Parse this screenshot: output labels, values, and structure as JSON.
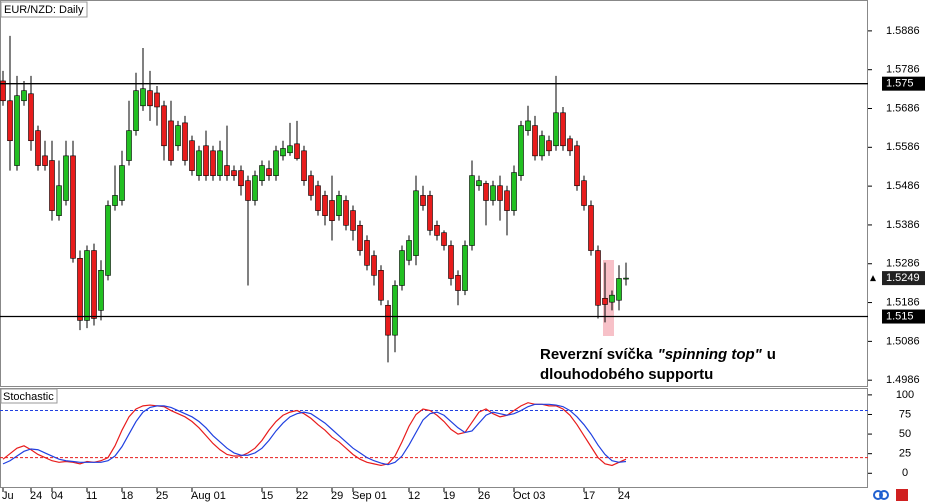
{
  "chart_data": [
    {
      "type": "candlestick",
      "title": "EUR/NZD: Daily",
      "open": [
        1.5757,
        1.5706,
        1.5539,
        1.5706,
        1.5724,
        1.5629,
        1.5564,
        1.5552,
        1.541,
        1.5449,
        1.5564,
        1.53,
        1.514,
        1.532,
        1.5166,
        1.5256,
        1.5436,
        1.5449,
        1.5552,
        1.5629,
        1.5693,
        1.5732,
        1.5726,
        1.5693,
        1.5654,
        1.559,
        1.5649,
        1.5603,
        1.5513,
        1.559,
        1.5577,
        1.5513,
        1.5539,
        1.5526,
        1.5526,
        1.55,
        1.5449,
        1.55,
        1.5531,
        1.5513,
        1.5564,
        1.5572,
        1.5595,
        1.5577,
        1.5513,
        1.5487,
        1.5462,
        1.5449,
        1.541,
        1.5449,
        1.5423,
        1.5385,
        1.5346,
        1.5307,
        1.5269,
        1.5179,
        1.5102,
        1.523,
        1.5295,
        1.5307,
        1.5462,
        1.5462,
        1.5385,
        1.5366,
        1.5333,
        1.5256,
        1.5217,
        1.5333,
        1.5487,
        1.5493,
        1.5449,
        1.5487,
        1.5474,
        1.5423,
        1.5513,
        1.5629,
        1.5642,
        1.5564,
        1.5603,
        1.559,
        1.5675,
        1.5608,
        1.559,
        1.55,
        1.5436,
        1.532,
        1.5197,
        1.5187,
        1.5192,
        1.5248
      ],
      "high": [
        1.5783,
        1.5873,
        1.577,
        1.5757,
        1.577,
        1.5642,
        1.5603,
        1.5603,
        1.5552,
        1.5603,
        1.5603,
        1.532,
        1.5333,
        1.5338,
        1.5295,
        1.5449,
        1.5539,
        1.5577,
        1.5706,
        1.5778,
        1.5842,
        1.5783,
        1.5744,
        1.5706,
        1.5706,
        1.5654,
        1.5667,
        1.5616,
        1.559,
        1.5629,
        1.559,
        1.5603,
        1.5642,
        1.5539,
        1.5539,
        1.5513,
        1.5526,
        1.5552,
        1.5552,
        1.559,
        1.5603,
        1.5649,
        1.5654,
        1.559,
        1.5526,
        1.55,
        1.5474,
        1.5513,
        1.5474,
        1.5462,
        1.5436,
        1.5397,
        1.5359,
        1.532,
        1.5282,
        1.5192,
        1.5243,
        1.5333,
        1.5359,
        1.5513,
        1.5487,
        1.5474,
        1.5397,
        1.5372,
        1.5346,
        1.5269,
        1.5346,
        1.5552,
        1.5513,
        1.55,
        1.55,
        1.5513,
        1.5487,
        1.5539,
        1.5654,
        1.5693,
        1.5667,
        1.5629,
        1.5616,
        1.577,
        1.569,
        1.5616,
        1.5603,
        1.5513,
        1.5449,
        1.5333,
        1.5289,
        1.5217,
        1.5282,
        1.5289
      ],
      "low": [
        1.5693,
        1.5526,
        1.5526,
        1.5693,
        1.5577,
        1.5526,
        1.5526,
        1.5397,
        1.5397,
        1.5436,
        1.5289,
        1.5115,
        1.512,
        1.5127,
        1.514,
        1.5243,
        1.5423,
        1.5436,
        1.5539,
        1.5616,
        1.568,
        1.5654,
        1.5642,
        1.5552,
        1.5539,
        1.5577,
        1.5539,
        1.5513,
        1.55,
        1.55,
        1.55,
        1.55,
        1.55,
        1.55,
        1.5462,
        1.523,
        1.5436,
        1.5487,
        1.55,
        1.55,
        1.5552,
        1.5564,
        1.5552,
        1.5487,
        1.5449,
        1.541,
        1.5385,
        1.5346,
        1.5397,
        1.5372,
        1.5346,
        1.5307,
        1.5269,
        1.523,
        1.5179,
        1.5032,
        1.5058,
        1.5217,
        1.5282,
        1.5282,
        1.5423,
        1.5359,
        1.5346,
        1.532,
        1.523,
        1.5179,
        1.5205,
        1.532,
        1.5474,
        1.5385,
        1.5436,
        1.5397,
        1.5359,
        1.541,
        1.55,
        1.5616,
        1.5552,
        1.5552,
        1.5564,
        1.5577,
        1.5577,
        1.5564,
        1.5474,
        1.5423,
        1.5307,
        1.5145,
        1.5135,
        1.5166,
        1.5166,
        1.523
      ],
      "close": [
        1.5706,
        1.5603,
        1.5719,
        1.5732,
        1.5603,
        1.5539,
        1.5539,
        1.5423,
        1.5487,
        1.5564,
        1.53,
        1.514,
        1.532,
        1.5145,
        1.5269,
        1.5436,
        1.5462,
        1.5539,
        1.5629,
        1.5732,
        1.5737,
        1.5693,
        1.569,
        1.559,
        1.5552,
        1.5642,
        1.5552,
        1.5526,
        1.5577,
        1.5513,
        1.5513,
        1.5577,
        1.5513,
        1.5513,
        1.5487,
        1.5449,
        1.5513,
        1.5539,
        1.5513,
        1.5577,
        1.5583,
        1.559,
        1.5557,
        1.55,
        1.5462,
        1.5423,
        1.541,
        1.5397,
        1.5462,
        1.5385,
        1.5372,
        1.532,
        1.5282,
        1.5256,
        1.5192,
        1.5102,
        1.523,
        1.532,
        1.5346,
        1.5474,
        1.5436,
        1.5372,
        1.5359,
        1.5333,
        1.5248,
        1.5217,
        1.5333,
        1.5513,
        1.55,
        1.5449,
        1.5487,
        1.5449,
        1.5423,
        1.5521,
        1.5642,
        1.5654,
        1.5564,
        1.5616,
        1.5577,
        1.5675,
        1.559,
        1.5577,
        1.5487,
        1.5436,
        1.532,
        1.5179,
        1.5181,
        1.5205,
        1.5248,
        1.5249
      ],
      "up_color": "#22c022",
      "down_color": "#e81c1c",
      "ylim": [
        1.4971,
        1.5963
      ],
      "yticks": [
        1.5886,
        1.5786,
        1.5686,
        1.5586,
        1.5486,
        1.5386,
        1.5286,
        1.5186,
        1.5086,
        1.4986
      ],
      "levels": [
        1.575,
        1.515
      ],
      "annotation": [
        "Reverzní svíčka",
        "\"spinning top\"",
        "u",
        "dlouhodobého supportu"
      ]
    },
    {
      "type": "line",
      "title": "Stochastic",
      "categories": [
        "Ju",
        null,
        null,
        null,
        "24",
        null,
        null,
        "04",
        null,
        null,
        null,
        null,
        "11",
        null,
        null,
        null,
        null,
        "18",
        null,
        null,
        null,
        null,
        "25",
        null,
        null,
        null,
        null,
        "Aug 01",
        null,
        null,
        null,
        null,
        null,
        null,
        null,
        null,
        null,
        "15",
        null,
        null,
        null,
        null,
        "22",
        null,
        null,
        null,
        null,
        "29",
        null,
        null,
        "Sep 01",
        null,
        null,
        null,
        null,
        null,
        null,
        null,
        "12",
        null,
        null,
        null,
        null,
        "19",
        null,
        null,
        null,
        null,
        "26",
        null,
        null,
        null,
        null,
        "Oct 03",
        null,
        null,
        null,
        null,
        null,
        null,
        null,
        null,
        null,
        "17",
        null,
        null,
        null,
        null,
        "24",
        null
      ],
      "series": [
        {
          "color": "#e81c1c",
          "values": [
            18,
            25,
            32,
            35,
            30,
            24,
            20,
            16,
            14,
            15,
            14,
            12,
            15,
            14,
            16,
            20,
            35,
            55,
            72,
            82,
            86,
            87,
            86,
            85,
            80,
            76,
            72,
            66,
            58,
            48,
            38,
            30,
            24,
            22,
            22,
            26,
            32,
            42,
            55,
            66,
            74,
            78,
            80,
            76,
            70,
            62,
            55,
            46,
            40,
            32,
            24,
            18,
            14,
            12,
            10,
            12,
            22,
            40,
            60,
            75,
            82,
            80,
            74,
            66,
            56,
            50,
            52,
            65,
            78,
            82,
            76,
            72,
            74,
            80,
            86,
            90,
            88,
            88,
            86,
            86,
            82,
            74,
            62,
            48,
            34,
            20,
            12,
            10,
            14,
            18
          ]
        },
        {
          "color": "#2040e0",
          "values": [
            12,
            16,
            22,
            28,
            31,
            30,
            26,
            22,
            18,
            16,
            15,
            14,
            14,
            14,
            14,
            16,
            22,
            34,
            50,
            66,
            78,
            84,
            86,
            86,
            84,
            80,
            76,
            72,
            66,
            58,
            48,
            40,
            32,
            26,
            23,
            23,
            26,
            32,
            42,
            54,
            64,
            72,
            76,
            78,
            76,
            70,
            64,
            56,
            48,
            40,
            32,
            26,
            20,
            16,
            13,
            11,
            14,
            22,
            36,
            52,
            68,
            76,
            78,
            74,
            66,
            58,
            52,
            54,
            64,
            74,
            78,
            76,
            74,
            76,
            80,
            85,
            88,
            88,
            88,
            87,
            85,
            80,
            72,
            62,
            50,
            36,
            24,
            16,
            14,
            15
          ]
        }
      ],
      "levels": [
        80,
        20
      ],
      "level_colors": [
        "#2040e0",
        "#e81c1c"
      ],
      "ylim": [
        -17.5,
        107.5
      ],
      "yticks": [
        0,
        25,
        50,
        75,
        100
      ]
    }
  ]
}
